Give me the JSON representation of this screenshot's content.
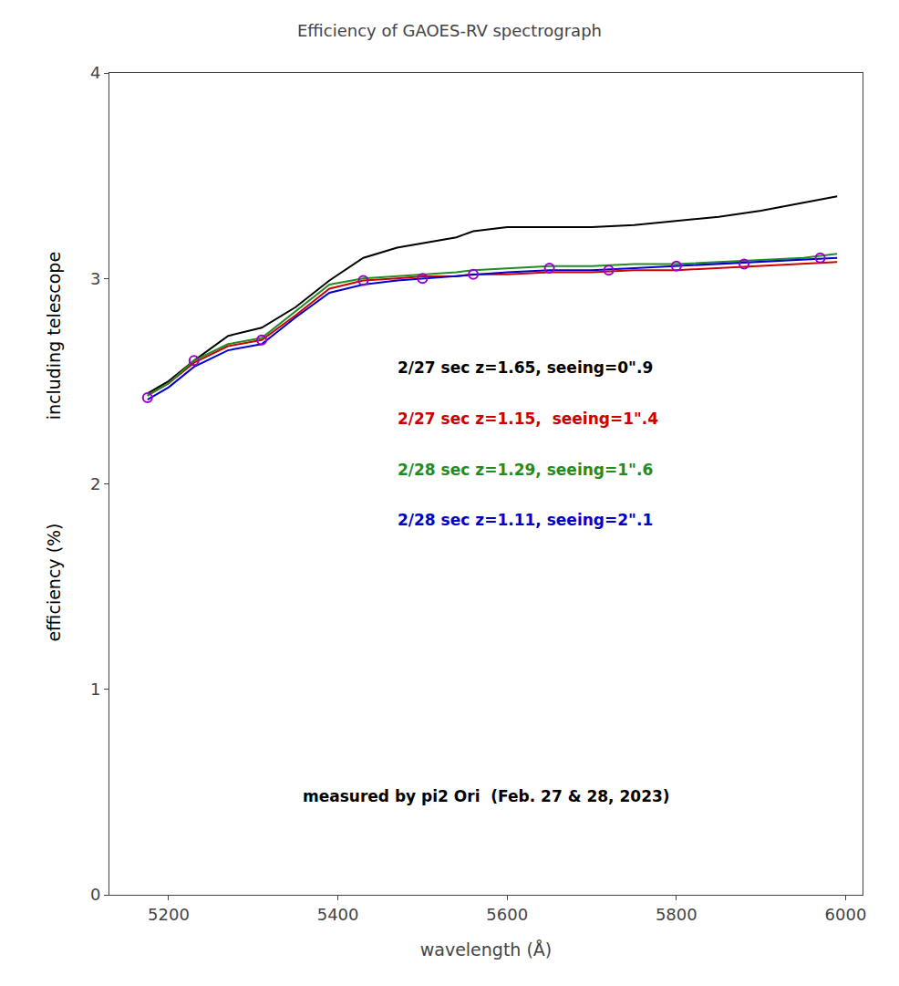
{
  "chart_data": {
    "type": "line",
    "title": "Efficiency of GAOES-RV spectrograph",
    "x_label": "wavelength (Å)",
    "y_labels": [
      "including telescope",
      "efficiency (%)"
    ],
    "annotation": "measured by pi2 Ori  (Feb. 27 & 28, 2023)",
    "xlim": [
      5130,
      6020
    ],
    "ylim": [
      0,
      4
    ],
    "xticks": [
      5200,
      5400,
      5600,
      5800,
      6000
    ],
    "yticks": [
      0,
      1,
      2,
      3,
      4
    ],
    "grid": false,
    "series": [
      {
        "name": "2/27 sec z=1.65, seeing=0\".9",
        "color": "#000000",
        "type": "line",
        "x": [
          5175,
          5200,
          5230,
          5270,
          5310,
          5350,
          5390,
          5430,
          5470,
          5500,
          5540,
          5560,
          5600,
          5650,
          5700,
          5750,
          5800,
          5850,
          5900,
          5950,
          5990
        ],
        "values": [
          2.44,
          2.5,
          2.6,
          2.72,
          2.76,
          2.86,
          2.99,
          3.1,
          3.15,
          3.17,
          3.2,
          3.23,
          3.25,
          3.25,
          3.25,
          3.26,
          3.28,
          3.3,
          3.33,
          3.37,
          3.4
        ]
      },
      {
        "name": "2/27 sec z=1.15,  seeing=1\".4",
        "color": "#cc0000",
        "type": "line",
        "x": [
          5175,
          5200,
          5230,
          5270,
          5310,
          5350,
          5390,
          5430,
          5470,
          5500,
          5540,
          5560,
          5600,
          5650,
          5700,
          5750,
          5800,
          5850,
          5900,
          5950,
          5990
        ],
        "values": [
          2.43,
          2.49,
          2.59,
          2.67,
          2.7,
          2.82,
          2.95,
          2.99,
          3.0,
          3.01,
          3.01,
          3.02,
          3.02,
          3.03,
          3.03,
          3.04,
          3.04,
          3.05,
          3.06,
          3.07,
          3.08
        ]
      },
      {
        "name": "2/28 sec z=1.29, seeing=1\".6",
        "color": "#228B22",
        "type": "line",
        "x": [
          5175,
          5200,
          5230,
          5270,
          5310,
          5350,
          5390,
          5430,
          5470,
          5500,
          5540,
          5560,
          5600,
          5650,
          5700,
          5750,
          5800,
          5850,
          5900,
          5950,
          5990
        ],
        "values": [
          2.43,
          2.49,
          2.6,
          2.68,
          2.71,
          2.84,
          2.97,
          3.0,
          3.01,
          3.02,
          3.03,
          3.04,
          3.05,
          3.06,
          3.06,
          3.07,
          3.07,
          3.08,
          3.09,
          3.1,
          3.12
        ]
      },
      {
        "name": "2/28 sec z=1.11, seeing=2\".1",
        "color": "#0000cc",
        "type": "line",
        "x": [
          5175,
          5200,
          5230,
          5270,
          5310,
          5350,
          5390,
          5430,
          5470,
          5500,
          5540,
          5560,
          5600,
          5650,
          5700,
          5750,
          5800,
          5850,
          5900,
          5950,
          5990
        ],
        "values": [
          2.41,
          2.47,
          2.57,
          2.65,
          2.68,
          2.81,
          2.93,
          2.97,
          2.99,
          3.0,
          3.01,
          3.02,
          3.03,
          3.04,
          3.04,
          3.05,
          3.06,
          3.07,
          3.08,
          3.09,
          3.1
        ]
      },
      {
        "color": "#9900cc",
        "type": "scatter",
        "marker": "open circle",
        "x": [
          5175,
          5230,
          5310,
          5430,
          5500,
          5560,
          5650,
          5720,
          5800,
          5880,
          5970
        ],
        "values": [
          2.42,
          2.6,
          2.7,
          2.99,
          3.0,
          3.02,
          3.05,
          3.04,
          3.06,
          3.07,
          3.1
        ]
      }
    ]
  }
}
